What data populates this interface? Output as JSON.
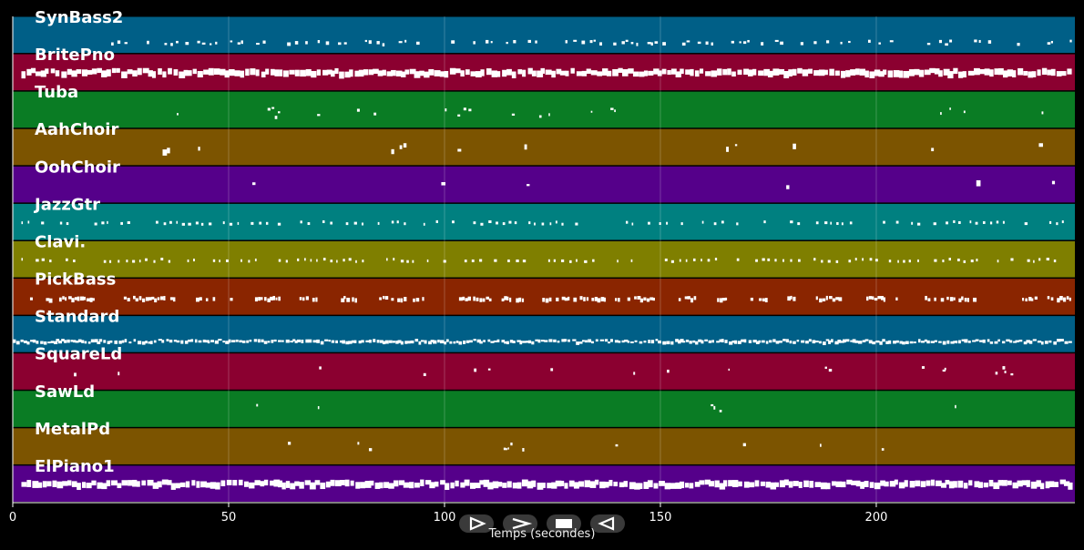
{
  "chart_data": {
    "type": "piano-roll",
    "xlabel": "Temps (secondes)",
    "xlim": [
      0,
      246
    ],
    "xticks": [
      0,
      50,
      100,
      150,
      200
    ],
    "grid": true,
    "tracks": [
      {
        "name": "SynBass2",
        "color": "#005f87",
        "segments": [
          [
            22,
            245
          ]
        ],
        "density": 0.55,
        "pattern": "low"
      },
      {
        "name": "BritePno",
        "color": "#8b0030",
        "segments": [
          [
            2,
            245
          ]
        ],
        "density": 0.95,
        "pattern": "dense"
      },
      {
        "name": "Tuba",
        "color": "#0a7c24",
        "segments": [
          [
            22,
            245
          ]
        ],
        "density": 0.25,
        "pattern": "sparse"
      },
      {
        "name": "AahChoir",
        "color": "#7c5400",
        "segments": [
          [
            33,
            82
          ],
          [
            83,
            125
          ],
          [
            163,
            182
          ],
          [
            200,
            245
          ]
        ],
        "density": 0.55,
        "pattern": "chord"
      },
      {
        "name": "OohChoir",
        "color": "#55008a",
        "segments": [
          [
            33,
            64
          ],
          [
            83,
            125
          ],
          [
            133,
            182
          ],
          [
            200,
            245
          ]
        ],
        "density": 0.25,
        "pattern": "chord"
      },
      {
        "name": "JazzGtr",
        "color": "#008080",
        "segments": [
          [
            2,
            245
          ]
        ],
        "density": 0.6,
        "pattern": "regular"
      },
      {
        "name": "Clavi.",
        "color": "#7f7f00",
        "segments": [
          [
            2,
            245
          ]
        ],
        "density": 0.65,
        "pattern": "regular"
      },
      {
        "name": "PickBass",
        "color": "#8a2500",
        "segments": [
          [
            4,
            245
          ]
        ],
        "density": 0.7,
        "pattern": "groups"
      },
      {
        "name": "Standard",
        "color": "#005f87",
        "segments": [
          [
            0,
            245
          ]
        ],
        "density": 0.9,
        "pattern": "dense-low"
      },
      {
        "name": "SquareLd",
        "color": "#8b0030",
        "segments": [
          [
            12,
            245
          ]
        ],
        "density": 0.18,
        "pattern": "phrases"
      },
      {
        "name": "SawLd",
        "color": "#0a7c24",
        "segments": [
          [
            12,
            245
          ]
        ],
        "density": 0.2,
        "pattern": "phrases"
      },
      {
        "name": "MetalPd",
        "color": "#7c5400",
        "segments": [
          [
            50,
            245
          ]
        ],
        "density": 0.18,
        "pattern": "phrases"
      },
      {
        "name": "ElPiano1",
        "color": "#55008a",
        "segments": [
          [
            2,
            245
          ]
        ],
        "density": 0.98,
        "pattern": "dense"
      }
    ]
  },
  "controls": {
    "play_icon": "play-outline-icon",
    "fast_forward_icon": "fast-forward-icon",
    "stop_icon": "stop-icon",
    "rewind_icon": "rewind-icon"
  }
}
